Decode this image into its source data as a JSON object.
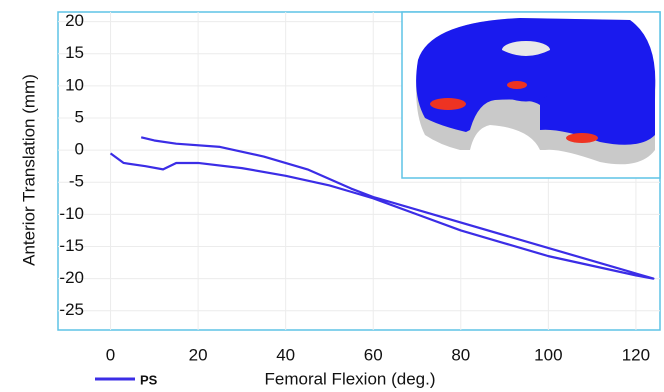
{
  "chart_data": {
    "type": "line",
    "x_label": "Femoral Flexion (deg.)",
    "y_label": "Anterior Translation (mm)",
    "xlim": [
      -12,
      125.5
    ],
    "ylim": [
      -28,
      21.5
    ],
    "xticks": [
      0,
      20,
      40,
      60,
      80,
      100,
      120
    ],
    "yticks": [
      20,
      15,
      10,
      5,
      0,
      -5,
      -10,
      -15,
      -20,
      -25
    ],
    "grid": true,
    "series": [
      {
        "name": "PS",
        "color": "#3b2de6",
        "x": [
          0,
          3,
          8,
          12,
          15,
          20,
          30,
          40,
          50,
          55,
          60,
          70,
          80,
          90,
          100,
          110,
          120,
          124,
          60,
          55,
          45,
          35,
          25,
          15,
          10,
          7
        ],
        "values": [
          -0.5,
          -2,
          -2.5,
          -3,
          -2,
          -2,
          -2.8,
          -4,
          -5.5,
          -6.5,
          -7.5,
          -10,
          -12.5,
          -14.5,
          -16.5,
          -18,
          -19.5,
          -20,
          -7.3,
          -6,
          -3,
          -1,
          0.5,
          1,
          1.5,
          2
        ]
      }
    ]
  }
}
